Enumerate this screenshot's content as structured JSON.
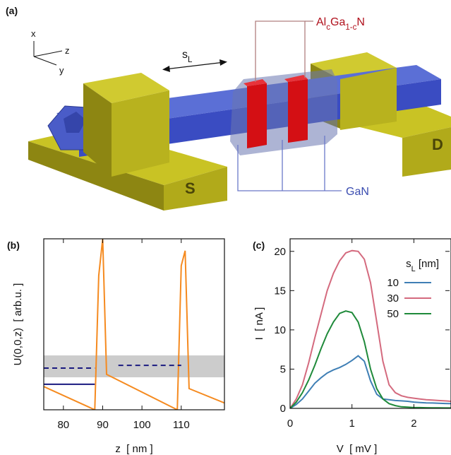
{
  "illustration": {
    "panel_label": "(a)",
    "axes": [
      "x",
      "z",
      "y"
    ],
    "spacing_label": [
      {
        "text": "s"
      },
      {
        "text": "L",
        "sub": true
      }
    ],
    "barrier_label": [
      {
        "text": "Al"
      },
      {
        "text": "c",
        "sub": true
      },
      {
        "text": "Ga"
      },
      {
        "text": "1-c",
        "sub": true
      },
      {
        "text": "N"
      }
    ],
    "wire_label": "GaN",
    "source_label": "S",
    "drain_label": "D"
  },
  "chart_data": [
    {
      "type": "line",
      "panel_label": "(b)",
      "x_label": "z  [ nm ]",
      "y_label": "U(0,0,z)  [ arb.u. ]",
      "xlim": [
        75,
        121
      ],
      "xticks": [
        80,
        90,
        100,
        110
      ],
      "ylim": [
        0,
        1
      ],
      "band": {
        "values": [
          0.19,
          0.318
        ],
        "color": "#cccccc"
      },
      "series": [
        {
          "x": [
            75,
            88,
            89,
            90,
            91,
            109,
            110,
            111,
            112,
            121
          ],
          "values": [
            0.136,
            0,
            0.785,
            1.0,
            0.207,
            0,
            0.843,
            0.93,
            0.124,
            0.04
          ],
          "color": "#f58a1f"
        },
        {
          "x": [
            75,
            88
          ],
          "values": [
            0.149,
            0.149
          ],
          "color": "#1a1a80"
        },
        {
          "x": [
            75,
            88,
            91,
            94,
            110
          ],
          "values": [
            0.244,
            0.244,
            null,
            0.26,
            0.26
          ],
          "color": "#1a1a80",
          "dash": true
        }
      ]
    },
    {
      "type": "line",
      "panel_label": "(c)",
      "x_label": "V  [ mV ]",
      "y_label": "I  [ nA ]",
      "xlim": [
        0,
        2.6
      ],
      "xticks": [
        0,
        1,
        2
      ],
      "ylim": [
        0,
        21.6
      ],
      "yticks": [
        0,
        5,
        10,
        15,
        20
      ],
      "legend": "top-right",
      "legend_title": [
        {
          "text": "s"
        },
        {
          "text": "L",
          "sub": true
        },
        {
          "text": " [nm]"
        }
      ],
      "x": [
        0,
        0.1,
        0.2,
        0.3,
        0.4,
        0.5,
        0.6,
        0.7,
        0.8,
        0.9,
        1.0,
        1.1,
        1.2,
        1.3,
        1.4,
        1.5,
        1.6,
        1.7,
        1.8,
        1.9,
        2.0,
        2.1,
        2.2,
        2.3,
        2.4,
        2.5,
        2.6
      ],
      "series": [
        {
          "name": "10",
          "color": "#3f7fb5",
          "values": [
            0,
            0.5,
            1.2,
            2.2,
            3.2,
            3.9,
            4.5,
            4.9,
            5.2,
            5.6,
            6.1,
            6.7,
            6,
            3.5,
            1.8,
            1.2,
            1.1,
            1.0,
            0.95,
            0.9,
            0.8,
            0.75,
            0.7,
            0.68,
            0.65,
            0.62,
            0.6
          ]
        },
        {
          "name": "30",
          "color": "#d46a7e",
          "values": [
            0,
            1.2,
            3,
            5.8,
            9,
            12,
            15,
            17.2,
            18.8,
            19.8,
            20.1,
            20,
            19,
            16,
            11,
            6,
            3,
            2,
            1.6,
            1.4,
            1.3,
            1.2,
            1.1,
            1.05,
            1.0,
            0.95,
            0.9
          ]
        },
        {
          "name": "50",
          "color": "#1f8a3a",
          "values": [
            0,
            0.8,
            2,
            3.6,
            5.5,
            7.6,
            9.5,
            11,
            12.1,
            12.4,
            12.2,
            11,
            8.5,
            5,
            2.5,
            1.2,
            0.6,
            0.35,
            0.2,
            0.15,
            0.1,
            0.1,
            0.08,
            0.07,
            0.06,
            0.05,
            0.05
          ]
        }
      ]
    }
  ]
}
